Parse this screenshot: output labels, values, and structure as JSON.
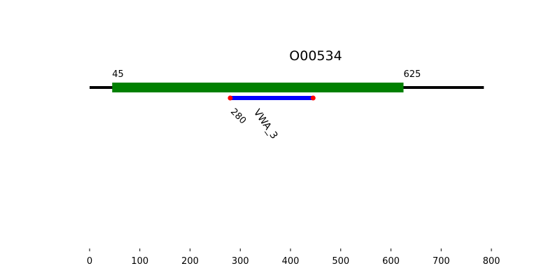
{
  "chart_data": {
    "type": "protein-domain-map",
    "title": "O00534",
    "sequence_length": 785,
    "xlim": [
      0,
      800
    ],
    "x_ticks": [
      0,
      100,
      200,
      300,
      400,
      500,
      600,
      700,
      800
    ],
    "region": {
      "start": 45,
      "end": 625,
      "start_label": "45",
      "end_label": "625"
    },
    "domains": [
      {
        "name": "VWA_3",
        "start": 280,
        "end": 445,
        "start_label": "280"
      }
    ],
    "colors": {
      "backbone": "#000000",
      "region": "#008000",
      "domain": "#0000ff",
      "domain_endpoint": "#ff0000"
    }
  }
}
